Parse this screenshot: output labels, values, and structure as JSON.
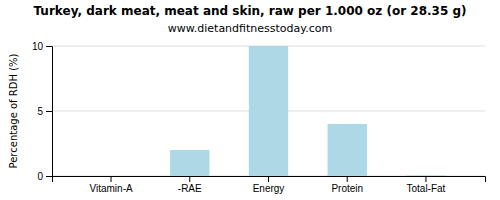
{
  "chart_data": {
    "type": "bar",
    "title": "Turkey, dark meat, meat and skin, raw per 1.000 oz (or 28.35 g)",
    "subtitle": "www.dietandfitnesstoday.com",
    "y_label": "Percentage of RDH (%)",
    "categories": [
      "Vitamin-A",
      "-RAE",
      "Energy",
      "Protein",
      "Total-Fat"
    ],
    "values": [
      0,
      2.0,
      10.0,
      4.0,
      0.05
    ],
    "color": "#add8e6",
    "ylim": [
      0,
      10
    ],
    "yticks": [
      0,
      5,
      10
    ],
    "grid": true
  }
}
